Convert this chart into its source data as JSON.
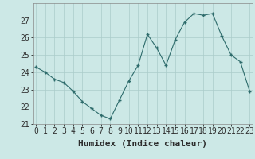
{
  "x": [
    0,
    1,
    2,
    3,
    4,
    5,
    6,
    7,
    8,
    9,
    10,
    11,
    12,
    13,
    14,
    15,
    16,
    17,
    18,
    19,
    20,
    21,
    22,
    23
  ],
  "y": [
    24.3,
    24.0,
    23.6,
    23.4,
    22.9,
    22.3,
    21.9,
    21.5,
    21.3,
    22.4,
    23.5,
    24.4,
    26.2,
    25.4,
    24.4,
    25.9,
    26.9,
    27.4,
    27.3,
    27.4,
    26.1,
    25.0,
    24.6,
    22.9
  ],
  "xlabel": "Humidex (Indice chaleur)",
  "ylim": [
    21,
    28
  ],
  "yticks": [
    21,
    22,
    23,
    24,
    25,
    26,
    27
  ],
  "background_color": "#cce8e6",
  "grid_color": "#aaccca",
  "line_color": "#2d6b6b",
  "marker_color": "#2d6b6b",
  "font_color": "#2d2d2d",
  "tick_fontsize": 7,
  "label_fontsize": 8
}
